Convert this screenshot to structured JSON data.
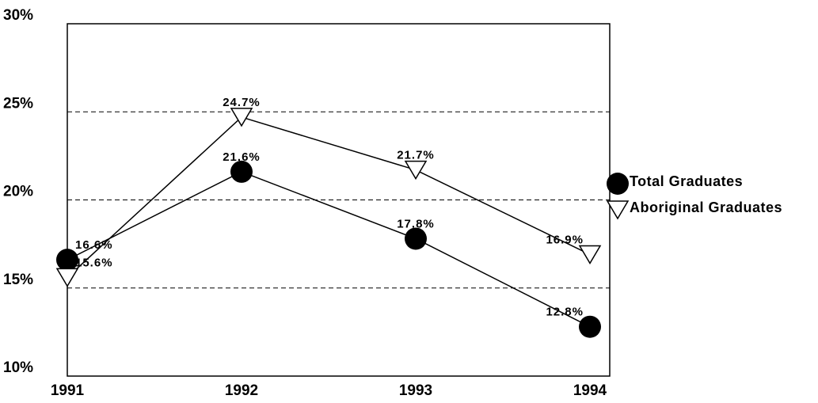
{
  "chart_data": {
    "type": "line",
    "categories": [
      "1991",
      "1992",
      "1993",
      "1994"
    ],
    "series": [
      {
        "name": "Total Graduates",
        "color": "#000000",
        "marker": "circle",
        "values": [
          16.6,
          21.6,
          17.8,
          12.8
        ],
        "value_labels": [
          "16.6%",
          "21.6%",
          "17.8%",
          "12.8%"
        ]
      },
      {
        "name": "Aboriginal Graduates",
        "color": "#000000",
        "marker": "triangle-down",
        "values": [
          15.6,
          24.7,
          21.7,
          16.9
        ],
        "value_labels": [
          "15.6%",
          "24.7%",
          "21.7%",
          "16.9%"
        ]
      }
    ],
    "ylim": [
      10,
      30
    ],
    "yticks": [
      {
        "value": 10,
        "label": "10%"
      },
      {
        "value": 15,
        "label": "15%"
      },
      {
        "value": 20,
        "label": "20%"
      },
      {
        "value": 25,
        "label": "25%"
      },
      {
        "value": 30,
        "label": "30%"
      }
    ],
    "grid": true,
    "legend": "right"
  }
}
